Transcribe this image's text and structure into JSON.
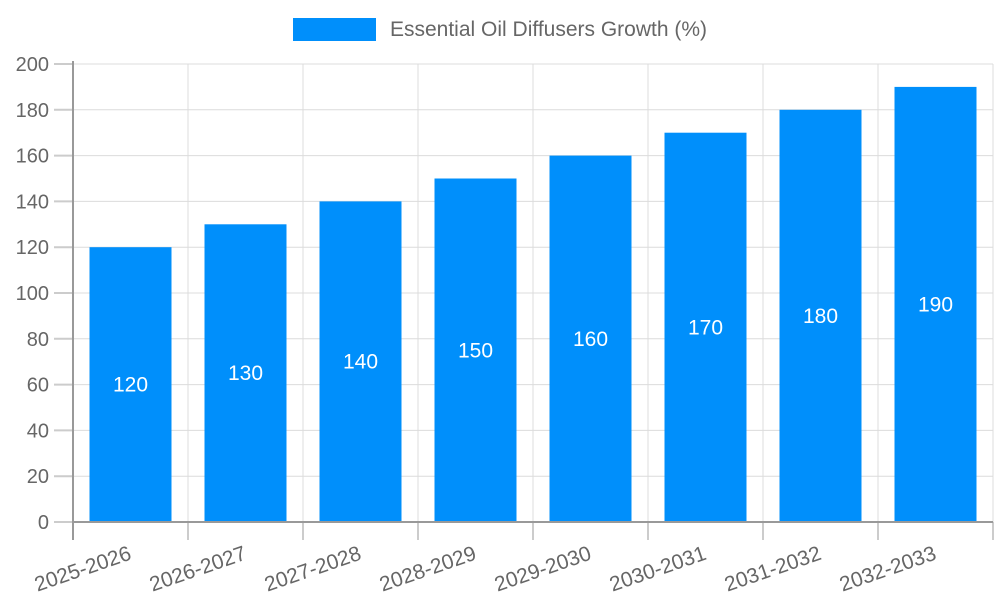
{
  "legend": {
    "label": "Essential Oil Diffusers Growth (%)"
  },
  "colors": {
    "bar": "#008FFB",
    "grid": "#dcdcdc",
    "tick": "#cccccc",
    "axis": "#999999",
    "axis_text": "#666666",
    "value_text": "#ffffff"
  },
  "chart_data": {
    "type": "bar",
    "title": "Essential Oil Diffusers Growth (%)",
    "categories": [
      "2025-2026",
      "2026-2027",
      "2027-2028",
      "2028-2029",
      "2029-2030",
      "2030-2031",
      "2031-2032",
      "2032-2033"
    ],
    "values": [
      120,
      130,
      140,
      150,
      160,
      170,
      180,
      190
    ],
    "value_labels": [
      "120",
      "130",
      "140",
      "150",
      "160",
      "170",
      "180",
      "190"
    ],
    "ytick_labels": [
      "0",
      "20",
      "40",
      "60",
      "80",
      "100",
      "120",
      "140",
      "160",
      "180",
      "200"
    ],
    "ylim": [
      0,
      200
    ],
    "ytick_step": 20,
    "xlabel": "",
    "ylabel": "",
    "grid": true,
    "legend_position": "top",
    "value_label_position": "inside-center",
    "xtick_rotation_deg": -19
  }
}
